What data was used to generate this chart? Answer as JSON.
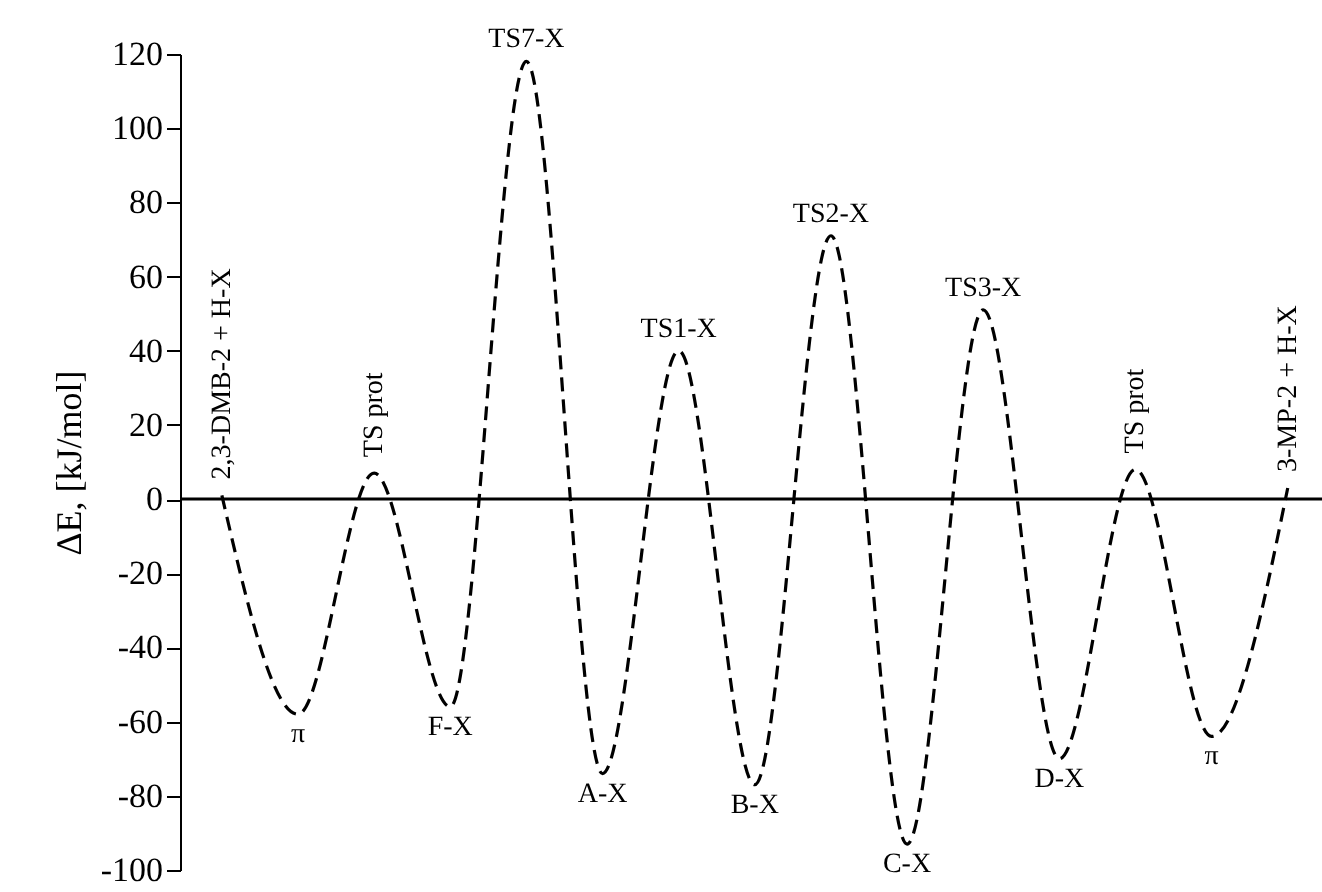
{
  "chart_data": {
    "type": "line",
    "ylabel": "ΔE, [kJ/mol]",
    "categories": [
      "2,3-DMB-2 + H-X",
      "π",
      "TS prot",
      "F-X",
      "TS7-X",
      "A-X",
      "TS1-X",
      "B-X",
      "TS2-X",
      "C-X",
      "TS3-X",
      "D-X",
      "TS prot",
      "π",
      "3-MP-2 + H-X"
    ],
    "series": [
      {
        "color": "#000000",
        "values": [
          1,
          -58,
          7,
          -56,
          118,
          -74,
          40,
          -77,
          71,
          -93,
          51,
          -70,
          8,
          -64,
          3
        ]
      }
    ],
    "ylim": [
      -100,
      120
    ],
    "yticks": [
      -100,
      -80,
      -60,
      -40,
      -20,
      0,
      20,
      40,
      60,
      80,
      100,
      120
    ],
    "ref_lines": [
      {
        "axis": "y",
        "value": 0,
        "color": "#000000"
      }
    ],
    "line_style": "dashed",
    "grid": false,
    "tick_labels": "y"
  }
}
